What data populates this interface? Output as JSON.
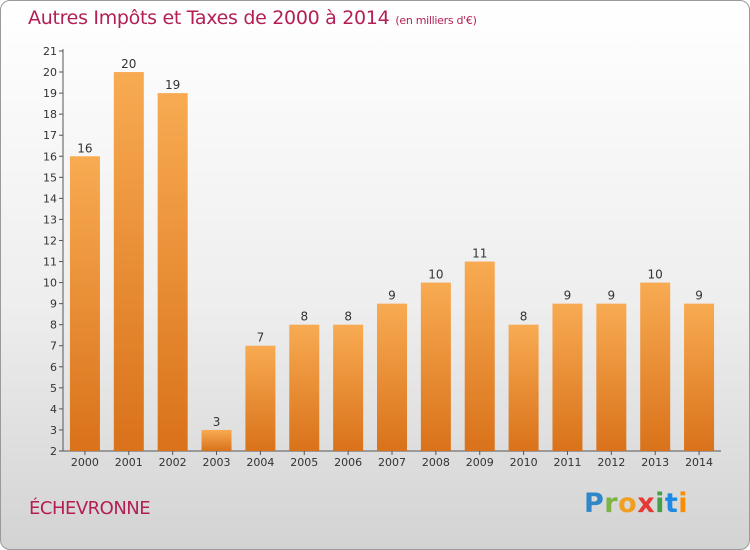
{
  "header": {
    "title": "Autres Impôts et Taxes de 2000 à 2014",
    "unit": "(en milliers d'€)"
  },
  "footer": {
    "location": "ÉCHEVRONNE",
    "logo": "Proxiti"
  },
  "colors": {
    "title": "#b31f55",
    "bar_light": "#f7a84e",
    "bar_dark": "#d9741c",
    "axis": "#555555"
  },
  "chart_data": {
    "type": "bar",
    "title": "Autres Impôts et Taxes de 2000 à 2014",
    "xlabel": "",
    "ylabel": "",
    "categories": [
      "2000",
      "2001",
      "2002",
      "2003",
      "2004",
      "2005",
      "2006",
      "2007",
      "2008",
      "2009",
      "2010",
      "2011",
      "2012",
      "2013",
      "2014"
    ],
    "values": [
      16,
      20,
      19,
      3,
      7,
      8,
      8,
      9,
      10,
      11,
      8,
      9,
      9,
      10,
      9
    ],
    "ylim": [
      2,
      21
    ],
    "yticks": [
      2,
      3,
      4,
      5,
      6,
      7,
      8,
      9,
      10,
      11,
      12,
      13,
      14,
      15,
      16,
      17,
      18,
      19,
      20,
      21
    ],
    "grid": false,
    "data_labels": true
  }
}
